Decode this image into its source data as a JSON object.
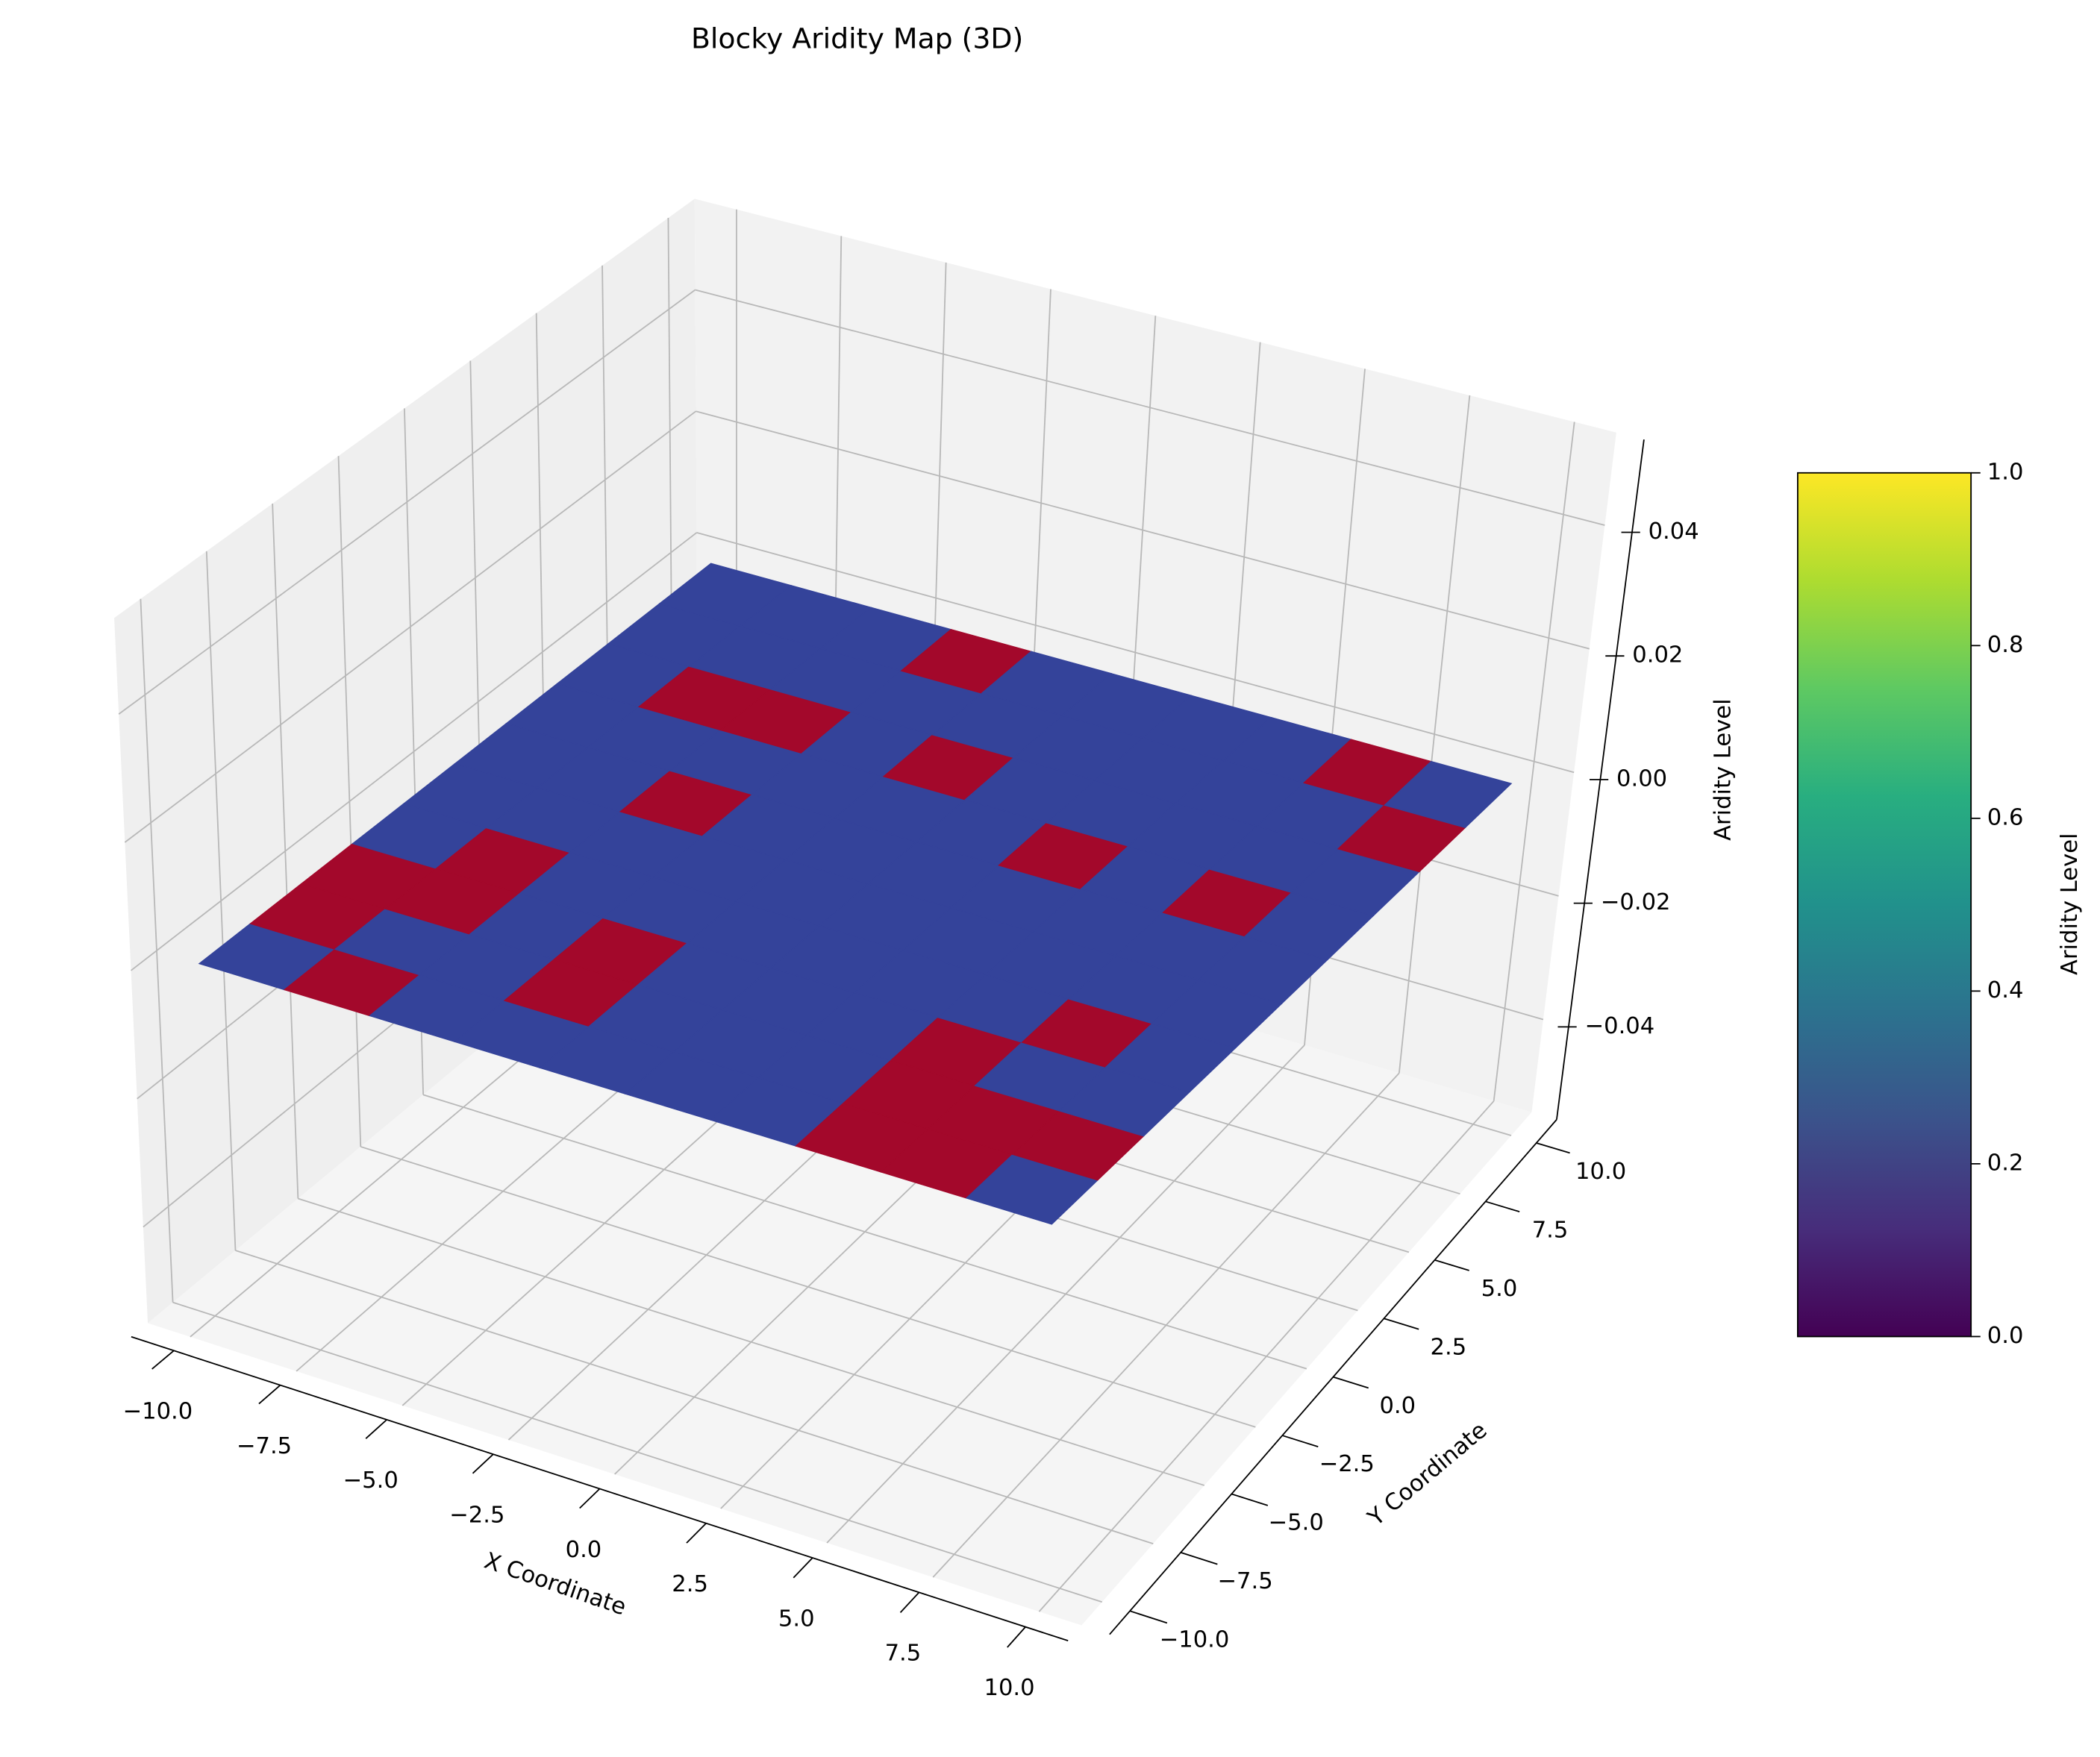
{
  "chart_data": {
    "type": "surface3d",
    "title": "Blocky Aridity Map (3D)",
    "x_label": "X Coordinate",
    "y_label": "Y Coordinate",
    "z_label": "Aridity Level",
    "xlim": [
      -11,
      11
    ],
    "ylim": [
      -11,
      11
    ],
    "zlim": [
      -0.055,
      0.055
    ],
    "xticks": [
      {
        "value": -10,
        "label": "−10.0"
      },
      {
        "value": -7.5,
        "label": "−7.5"
      },
      {
        "value": -5,
        "label": "−5.0"
      },
      {
        "value": -2.5,
        "label": "−2.5"
      },
      {
        "value": 0,
        "label": "0.0"
      },
      2.5,
      {
        "value": 5,
        "label": "5.0"
      },
      7.5,
      {
        "value": 10,
        "label": "10.0"
      }
    ],
    "yticks": [
      {
        "value": -10,
        "label": "−10.0"
      },
      {
        "value": -7.5,
        "label": "−7.5"
      },
      {
        "value": -5,
        "label": "−5.0"
      },
      {
        "value": -2.5,
        "label": "−2.5"
      },
      {
        "value": 0,
        "label": "0.0"
      },
      2.5,
      {
        "value": 5,
        "label": "5.0"
      },
      7.5,
      {
        "value": 10,
        "label": "10.0"
      }
    ],
    "zticks": [
      {
        "value": 0.04,
        "label": "0.04"
      },
      {
        "value": 0.02,
        "label": "0.02"
      },
      {
        "value": 0,
        "label": "0.00"
      },
      {
        "value": -0.02,
        "label": "−0.02"
      },
      {
        "value": -0.04,
        "label": "−0.04"
      }
    ],
    "grid": true,
    "x": [
      -10,
      -8,
      -6,
      -4,
      -2,
      0,
      2,
      4,
      6,
      8,
      10
    ],
    "y": [
      -10,
      -8,
      -6,
      -4,
      -2,
      0,
      2,
      4,
      6,
      8,
      10
    ],
    "z": 0,
    "values": [
      [
        0,
        1,
        0,
        0,
        0,
        0,
        0,
        1,
        1,
        0
      ],
      [
        1,
        0,
        0,
        1,
        0,
        0,
        0,
        1,
        1,
        1
      ],
      [
        1,
        1,
        0,
        1,
        0,
        0,
        0,
        1,
        0,
        0
      ],
      [
        0,
        1,
        0,
        0,
        0,
        0,
        0,
        0,
        1,
        0
      ],
      [
        0,
        0,
        0,
        0,
        0,
        0,
        0,
        0,
        0,
        0
      ],
      [
        0,
        0,
        1,
        0,
        0,
        0,
        0,
        0,
        0,
        0
      ],
      [
        0,
        0,
        0,
        0,
        0,
        0,
        1,
        0,
        1,
        0
      ],
      [
        0,
        1,
        1,
        0,
        1,
        0,
        0,
        0,
        0,
        0
      ],
      [
        0,
        0,
        0,
        0,
        0,
        0,
        0,
        0,
        0,
        1
      ],
      [
        0,
        0,
        0,
        1,
        0,
        0,
        0,
        0,
        1,
        0
      ]
    ],
    "colors": [
      "#34439a",
      "#a3082b"
    ],
    "colorbar": {
      "label": "Aridity Level",
      "lim": [
        0,
        1
      ],
      "ticks": [
        {
          "value": 0,
          "label": "0.0"
        },
        {
          "value": 0.2,
          "label": "0.2"
        },
        {
          "value": 0.4,
          "label": "0.4"
        },
        {
          "value": 0.6,
          "label": "0.6"
        },
        {
          "value": 0.8,
          "label": "0.8"
        },
        {
          "value": 1,
          "label": "1.0"
        }
      ]
    }
  }
}
